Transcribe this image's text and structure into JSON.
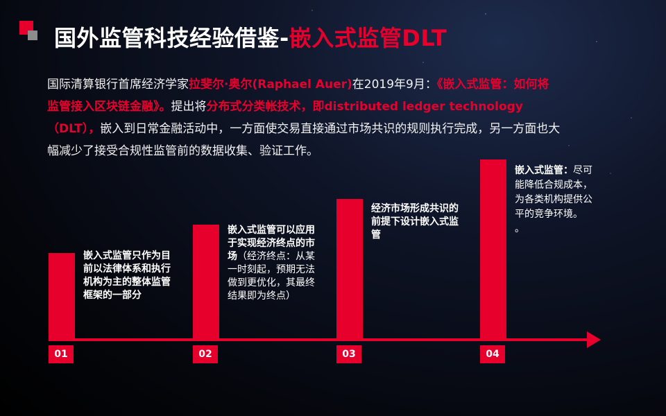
{
  "title": {
    "main": "国外监管科技经验借鉴-",
    "accent": "嵌入式监管DLT"
  },
  "intro": {
    "p1": "国际清算银行首席经济学家",
    "name": "拉斐尔·奥尔(Raphael Auer)",
    "p2": "在2019年9月：",
    "paper": "《嵌入式监管：如何将监管接入区块链金融》。",
    "p3": "提出将",
    "tech": "分布式分类帐技术，即distributed ledger technology（DLT），",
    "p4": "嵌入到日常金融活动中，一方面使交易直接通过市场共识的规则执行完成，另一方面也大幅减少了接受合规性监管前的数据收集、验证工作。"
  },
  "steps": [
    {
      "number": "01",
      "bold": "嵌入式监管只作为目前以法律体系和执行机构为主的整体监管框架的一部分",
      "normal": ""
    },
    {
      "number": "02",
      "bold": "嵌入式监管可以应用于实现经济终点的市场",
      "normal": "（经济终点：从某一时刻起，预期无法做到更优化，其最终结果即为终点）"
    },
    {
      "number": "03",
      "bold": "经济市场形成共识的前提下设计嵌入式监管",
      "normal": ""
    },
    {
      "number": "04",
      "bold": "嵌入式监管：",
      "normal": "尽可能降低合规成本，为各类机构提供公平的竞争环境。",
      "extra": "。"
    }
  ],
  "colors": {
    "accent": "#e8002d",
    "deco_gray": "#8c8c8c"
  }
}
